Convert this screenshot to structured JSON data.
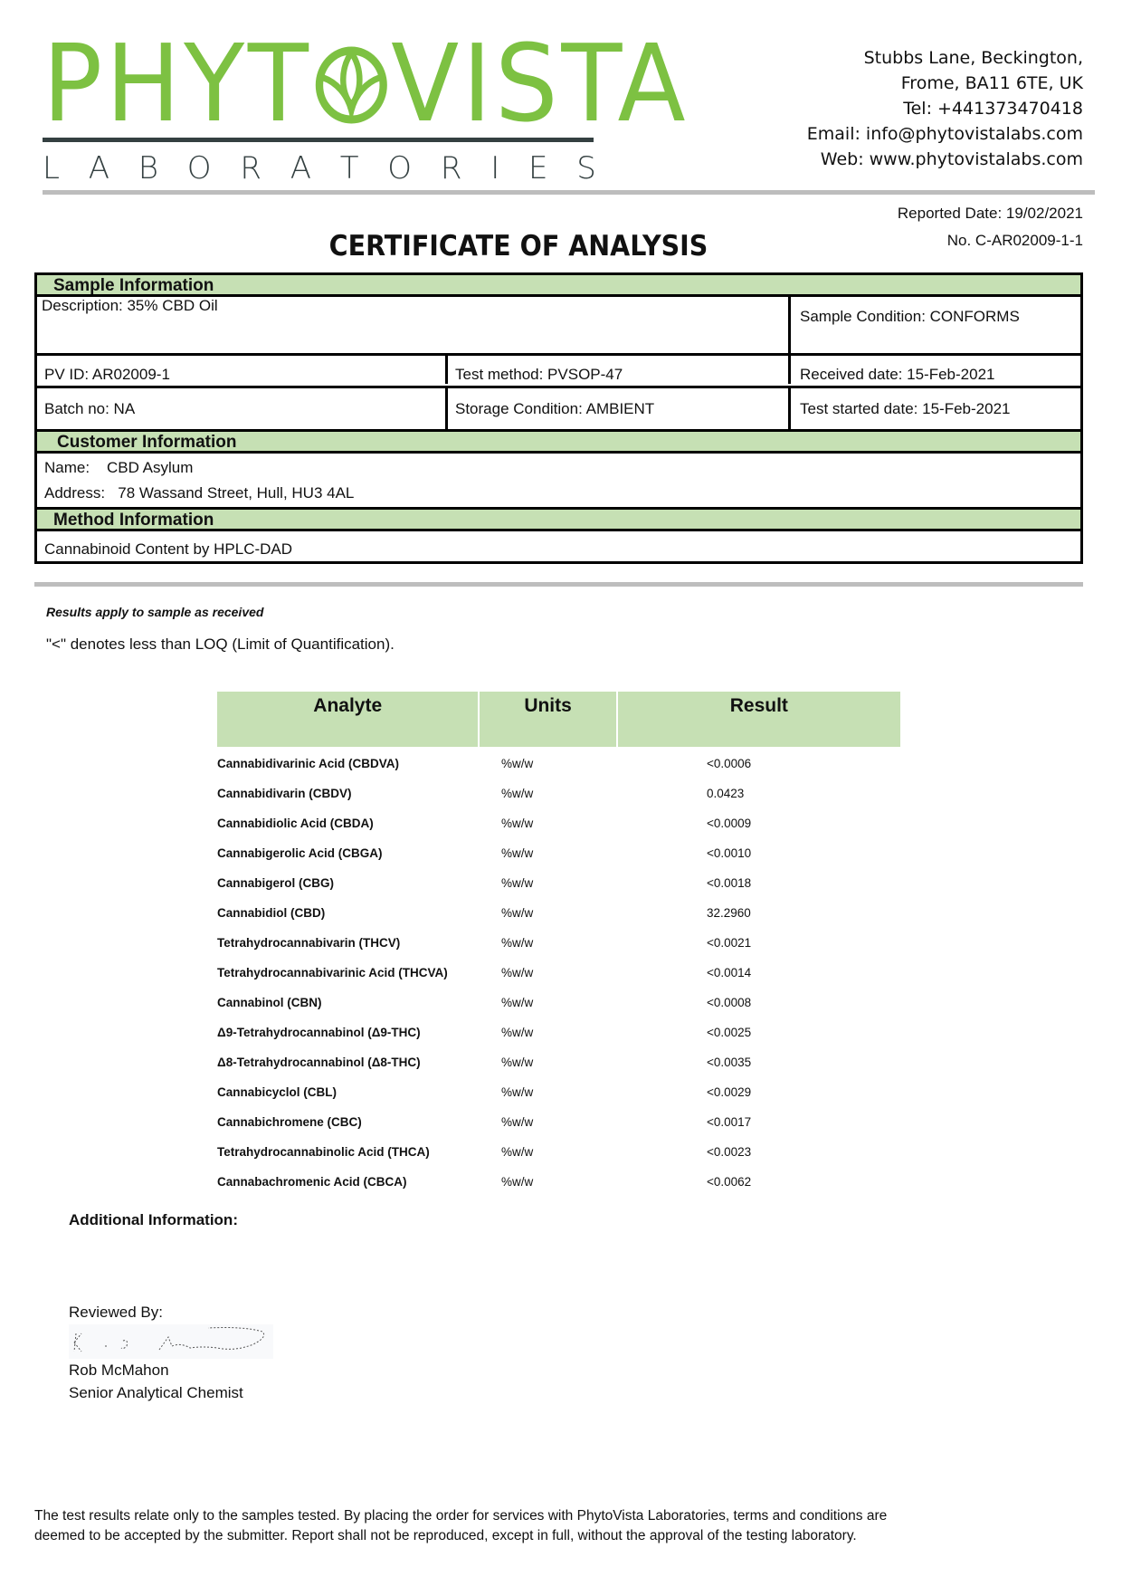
{
  "logo": {
    "name_left": "PHYT",
    "name_right": "VISTA",
    "subtitle_letters": [
      "L",
      "A",
      "B",
      "O",
      "R",
      "A",
      "T",
      "O",
      "R",
      "I",
      "E",
      "S"
    ],
    "brand_color": "#7dc142",
    "dark_color": "#344041"
  },
  "contact": {
    "lines": [
      "Stubbs Lane, Beckington,",
      "Frome, BA11 6TE, UK",
      "Tel: +441373470418",
      "Email: info@phytovistalabs.com",
      "Web: www.phytovistalabs.com"
    ]
  },
  "report": {
    "reported_date": "Reported Date: 19/02/2021",
    "number": "No. C-AR02009-1-1",
    "title": "CERTIFICATE OF ANALYSIS"
  },
  "sample": {
    "header": "Sample Information",
    "description": "Description: 35% CBD Oil",
    "condition": "Sample Condition: CONFORMS",
    "pv_id": "PV ID: AR02009-1",
    "test_method": "Test method: PVSOP-47",
    "received": "Received date: 15-Feb-2021",
    "batch": "Batch no: NA",
    "storage": "Storage Condition: AMBIENT",
    "test_started": "Test started date: 15-Feb-2021"
  },
  "customer": {
    "header": "Customer Information",
    "name_label": "Name:",
    "name": "CBD Asylum",
    "address_label": "Address:",
    "address": "78 Wassand Street, Hull, HU3 4AL"
  },
  "method": {
    "header": "Method Information",
    "value": "Cannabinoid Content by HPLC-DAD"
  },
  "notes": {
    "apply": "Results apply to sample as received",
    "loq": "\"<\" denotes less than LOQ (Limit of Quantification)."
  },
  "results": {
    "headers": [
      "Analyte",
      "Units",
      "Result"
    ],
    "header_color": "#c6e0b4",
    "rows": [
      [
        "Cannabidivarinic Acid (CBDVA)",
        "%w/w",
        "<0.0006"
      ],
      [
        "Cannabidivarin (CBDV)",
        "%w/w",
        "0.0423"
      ],
      [
        "Cannabidiolic Acid (CBDA)",
        "%w/w",
        "<0.0009"
      ],
      [
        "Cannabigerolic Acid (CBGA)",
        "%w/w",
        "<0.0010"
      ],
      [
        "Cannabigerol (CBG)",
        "%w/w",
        "<0.0018"
      ],
      [
        "Cannabidiol (CBD)",
        "%w/w",
        "32.2960"
      ],
      [
        "Tetrahydrocannabivarin (THCV)",
        "%w/w",
        "<0.0021"
      ],
      [
        "Tetrahydrocannabivarinic Acid (THCVA)",
        "%w/w",
        "<0.0014"
      ],
      [
        "Cannabinol (CBN)",
        "%w/w",
        "<0.0008"
      ],
      [
        "Δ9-Tetrahydrocannabinol (Δ9-THC)",
        "%w/w",
        "<0.0025"
      ],
      [
        "Δ8-Tetrahydrocannabinol (Δ8-THC)",
        "%w/w",
        "<0.0035"
      ],
      [
        "Cannabicyclol (CBL)",
        "%w/w",
        "<0.0029"
      ],
      [
        "Cannabichromene (CBC)",
        "%w/w",
        "<0.0017"
      ],
      [
        "Tetrahydrocannabinolic Acid (THCA)",
        "%w/w",
        "<0.0023"
      ],
      [
        "Cannabachromenic Acid (CBCA)",
        "%w/w",
        "<0.0062"
      ]
    ]
  },
  "additional": {
    "label": "Additional Information:"
  },
  "review": {
    "label": "Reviewed By:",
    "name": "Rob McMahon",
    "role": "Senior Analytical Chemist",
    "signature_text": "R. S. McMahon"
  },
  "footer": {
    "line1": "The test results relate only to the samples tested.  By placing the order for services with PhytoVista Laboratories, terms and conditions are",
    "line2": "deemed to be accepted by the submitter. Report shall not be reproduced, except in full, without the approval of the testing laboratory."
  }
}
